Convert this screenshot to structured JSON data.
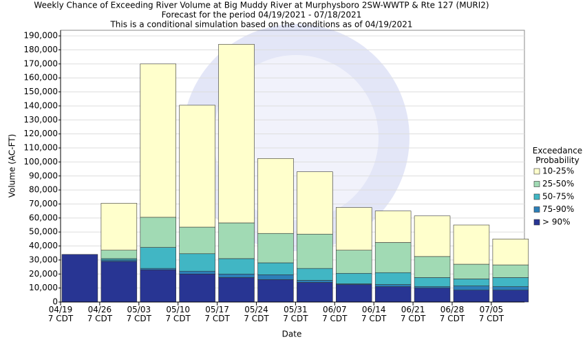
{
  "chart_data": {
    "type": "stacked_bar",
    "title": "Weekly Chance of Exceeding River Volume at Big Muddy River at Murphysboro 2SW-WWTP & Rte 127 (MURI2)",
    "subtitle": "Forecast for the period 04/19/2021 - 07/18/2021",
    "note": "This is a conditional simulation based on the conditions as of 04/19/2021",
    "x_label": "Date",
    "y_label": "Volume (AC-FT)",
    "legend_title": "Exceedance Probability",
    "legend_position": "right",
    "grid": true,
    "categories": [
      "04/19\n7 CDT",
      "04/26\n7 CDT",
      "05/03\n7 CDT",
      "05/10\n7 CDT",
      "05/17\n7 CDT",
      "05/24\n7 CDT",
      "05/31\n7 CDT",
      "06/07\n7 CDT",
      "06/14\n7 CDT",
      "06/21\n7 CDT",
      "06/28\n7 CDT",
      "07/05\n7 CDT"
    ],
    "series": [
      {
        "name": "> 90%",
        "color": "#283593",
        "values": [
          34000,
          29000,
          23000,
          20000,
          17500,
          16000,
          14000,
          12500,
          11000,
          10000,
          8500,
          8500
        ]
      },
      {
        "name": "75-90%",
        "color": "#2c7fb8",
        "values": [
          0,
          1000,
          1000,
          2000,
          2500,
          3500,
          1500,
          500,
          1500,
          1000,
          3000,
          2500
        ]
      },
      {
        "name": "50-75%",
        "color": "#41b6c4",
        "values": [
          0,
          1000,
          15000,
          12500,
          11000,
          8500,
          8500,
          7500,
          8500,
          6500,
          5000,
          6500
        ]
      },
      {
        "name": "25-50%",
        "color": "#a1dab4",
        "values": [
          0,
          6000,
          21500,
          19000,
          25500,
          21000,
          24500,
          16500,
          21500,
          15000,
          10500,
          9000
        ]
      },
      {
        "name": "10-25%",
        "color": "#ffffcc",
        "values": [
          0,
          33500,
          109500,
          87000,
          127500,
          53500,
          44500,
          30500,
          22500,
          29000,
          28000,
          18500
        ]
      }
    ],
    "ylim": [
      0,
      194000
    ],
    "yticks": [
      0,
      {
        "value": 10000,
        "label": "10,000"
      },
      {
        "value": 20000,
        "label": "20,000"
      },
      {
        "value": 30000,
        "label": "30,000"
      },
      {
        "value": 40000,
        "label": "40,000"
      },
      {
        "value": 50000,
        "label": "50,000"
      },
      {
        "value": 60000,
        "label": "60,000"
      },
      {
        "value": 70000,
        "label": "70,000"
      },
      {
        "value": 80000,
        "label": "80,000"
      },
      {
        "value": 90000,
        "label": "90,000"
      },
      {
        "value": 100000,
        "label": "100,000"
      },
      {
        "value": 110000,
        "label": "110,000"
      },
      {
        "value": 120000,
        "label": "120,000"
      },
      {
        "value": 130000,
        "label": "130,000"
      },
      {
        "value": 140000,
        "label": "140,000"
      },
      {
        "value": 150000,
        "label": "150,000"
      },
      {
        "value": 160000,
        "label": "160,000"
      },
      {
        "value": 170000,
        "label": "170,000"
      },
      {
        "value": 180000,
        "label": "180,000"
      },
      {
        "value": 190000,
        "label": "190,000"
      }
    ]
  }
}
